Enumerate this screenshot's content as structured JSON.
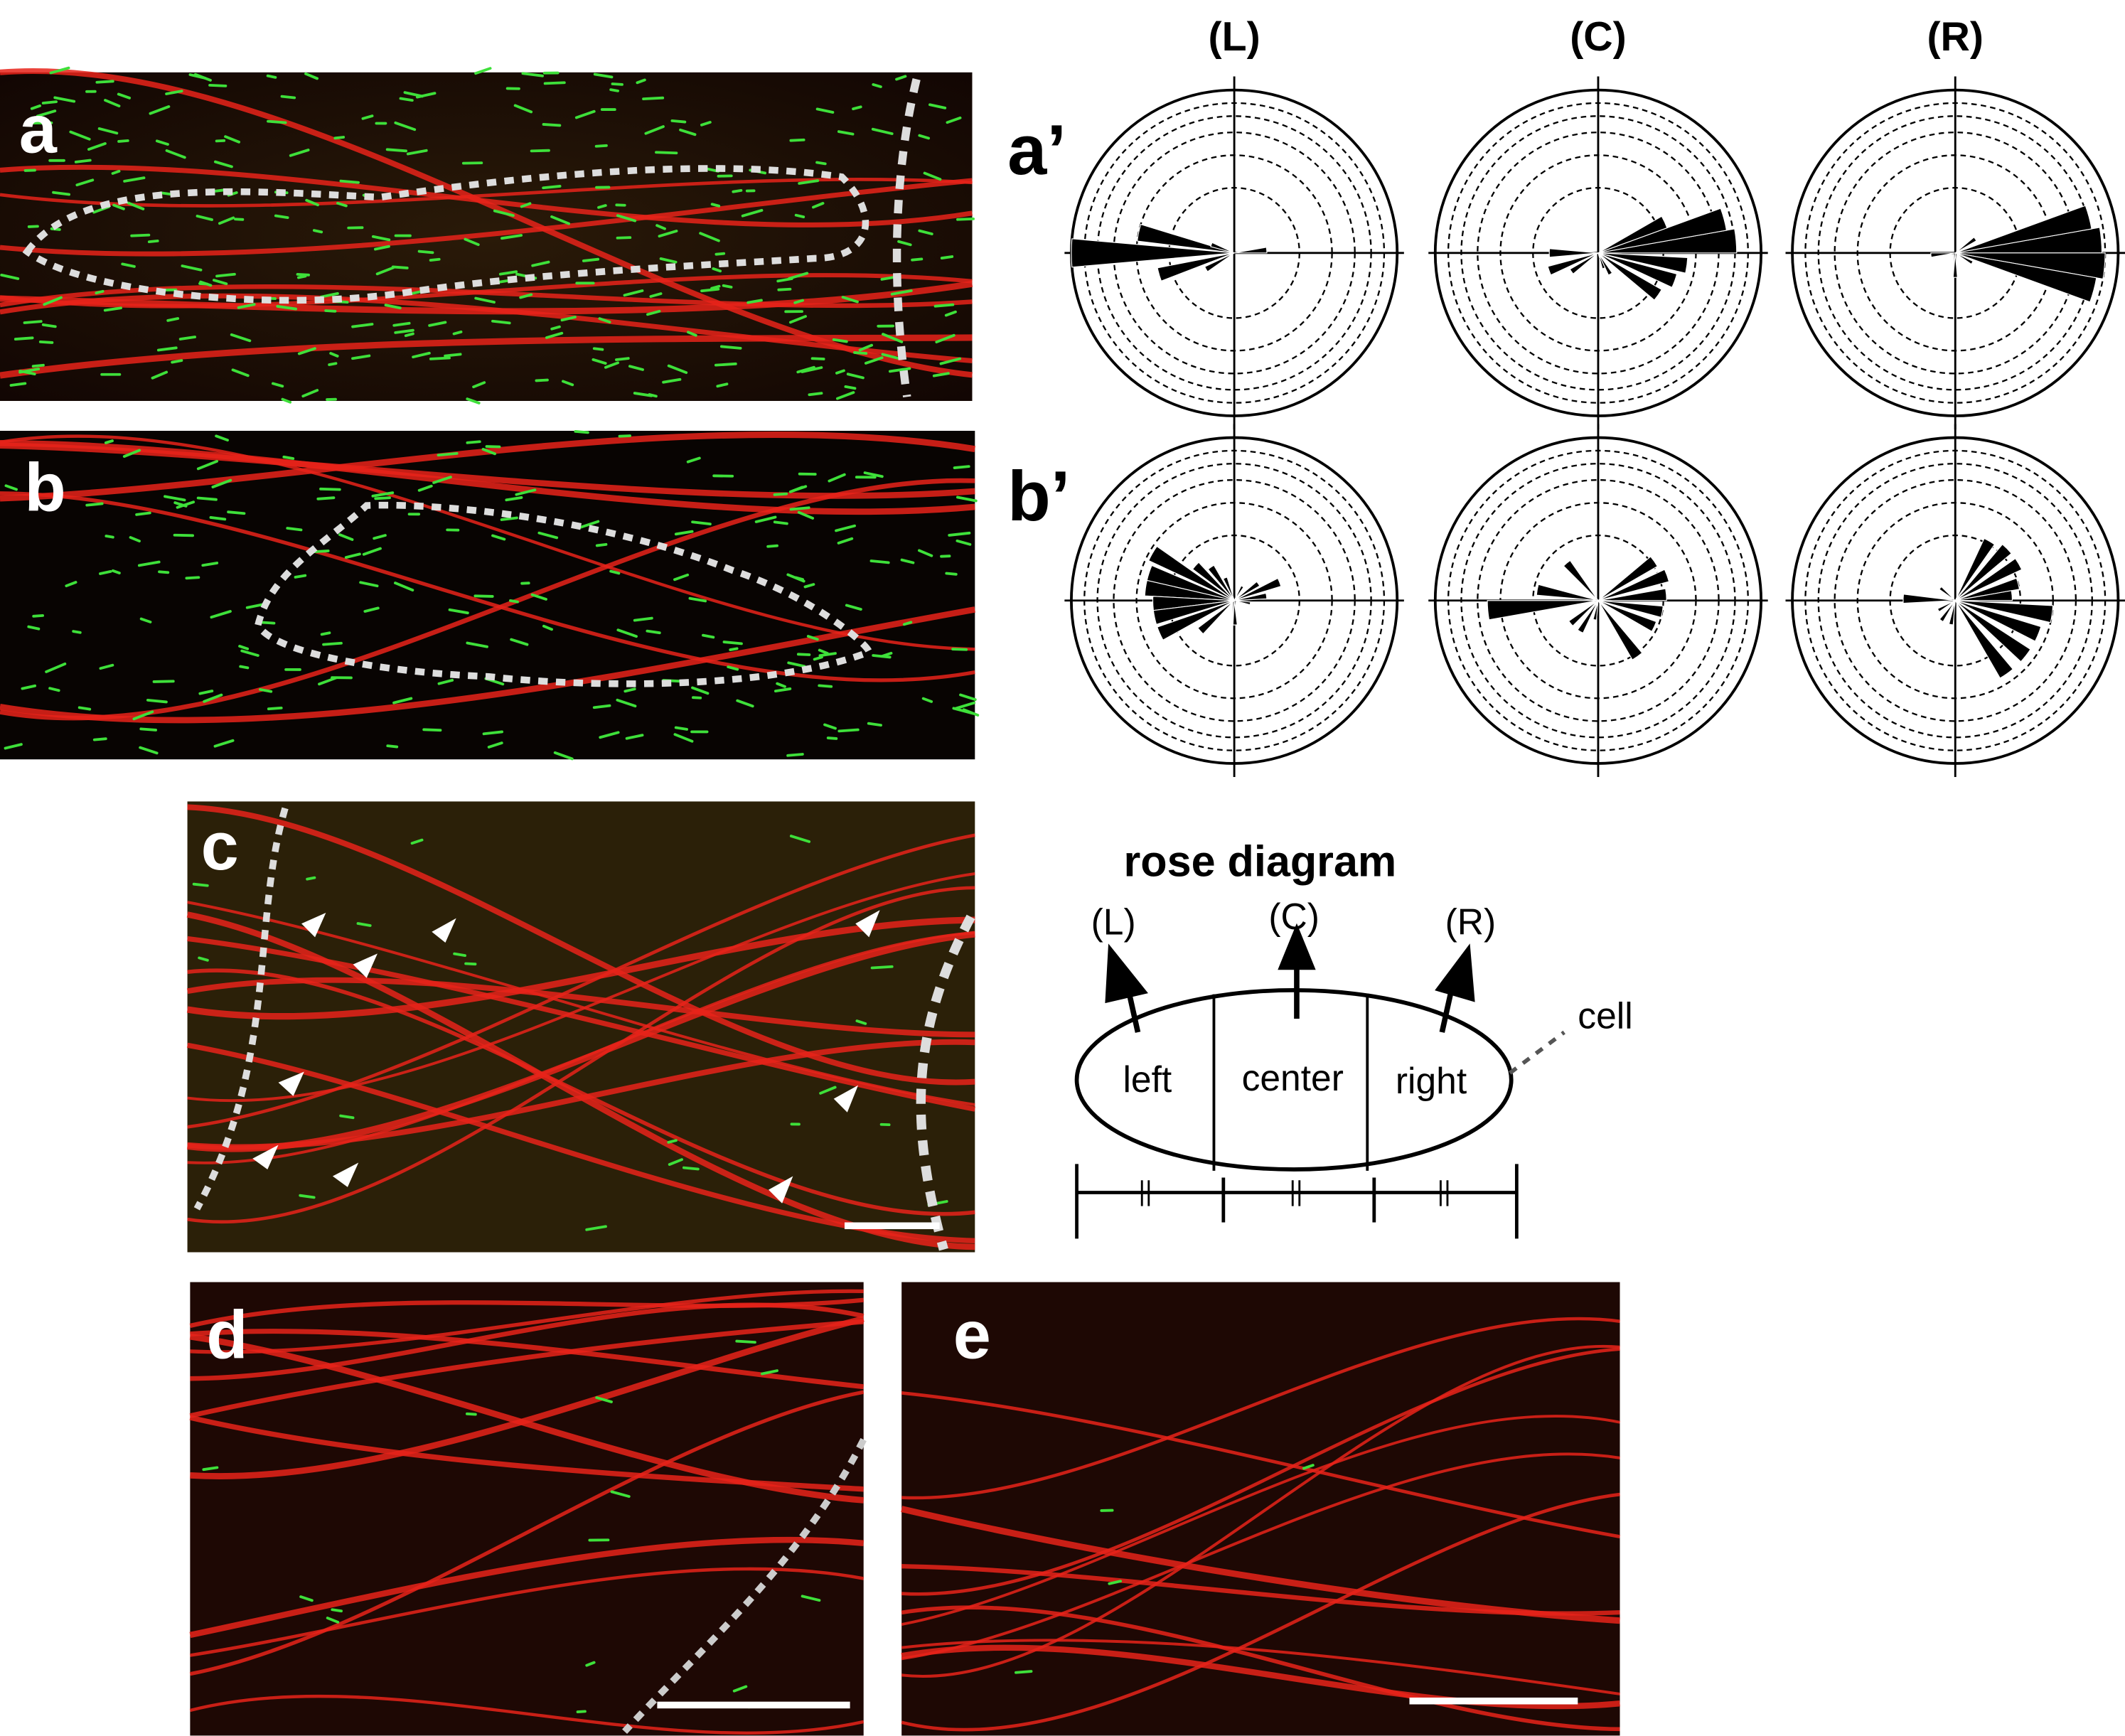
{
  "panels": {
    "a": "a",
    "b": "b",
    "c": "c",
    "d": "d",
    "e": "e",
    "a_prime": "a’",
    "b_prime": "b’"
  },
  "columns": [
    "(L)",
    "(C)",
    "(R)"
  ],
  "schematic": {
    "title": "rose diagram",
    "arrow_labels": [
      "(L)",
      "(C)",
      "(R)"
    ],
    "regions": [
      "left",
      "center",
      "right"
    ],
    "cell_label": "cell"
  },
  "colors": {
    "membrane": "#e8231a",
    "marker": "#3ee03a",
    "outline": "#d8d8d8",
    "background": "#1a0a05"
  },
  "chart_data": {
    "type": "rose",
    "rings": 6,
    "note_units": "bin angle in degrees (0 = right, counter-clockwise); length as fraction of outer circle",
    "rows": [
      {
        "row": "a’",
        "diagrams": [
          {
            "column": "(L)",
            "bins": [
              [
                180,
                1.0
              ],
              [
                168,
                0.6
              ],
              [
                196,
                0.48
              ],
              [
                160,
                0.15
              ],
              [
                5,
                0.2
              ],
              [
                210,
                0.2
              ]
            ]
          },
          {
            "column": "(C)",
            "bins": [
              [
                5,
                0.85
              ],
              [
                15,
                0.8
              ],
              [
                25,
                0.45
              ],
              [
                352,
                0.55
              ],
              [
                340,
                0.5
              ],
              [
                325,
                0.45
              ],
              [
                180,
                0.3
              ],
              [
                200,
                0.32
              ],
              [
                215,
                0.2
              ],
              [
                300,
                0.15
              ],
              [
                290,
                0.1
              ]
            ]
          },
          {
            "column": "(R)",
            "bins": [
              [
                5,
                0.9
              ],
              [
                15,
                0.85
              ],
              [
                355,
                0.92
              ],
              [
                345,
                0.88
              ],
              [
                35,
                0.15
              ],
              [
                185,
                0.15
              ],
              [
                270,
                0.15
              ],
              [
                330,
                0.12
              ]
            ]
          }
        ]
      },
      {
        "row": "b’",
        "diagrams": [
          {
            "column": "(L)",
            "bins": [
              [
                150,
                0.58
              ],
              [
                162,
                0.55
              ],
              [
                172,
                0.55
              ],
              [
                182,
                0.5
              ],
              [
                192,
                0.5
              ],
              [
                204,
                0.5
              ],
              [
                138,
                0.32
              ],
              [
                125,
                0.25
              ],
              [
                112,
                0.15
              ],
              [
                60,
                0.1
              ],
              [
                35,
                0.18
              ],
              [
                22,
                0.3
              ],
              [
                8,
                0.2
              ],
              [
                272,
                0.15
              ],
              [
                222,
                0.28
              ],
              [
                350,
                0.1
              ]
            ]
          },
          {
            "column": "(C)",
            "bins": [
              [
                185,
                0.68
              ],
              [
                170,
                0.38
              ],
              [
                130,
                0.3
              ],
              [
                35,
                0.42
              ],
              [
                20,
                0.45
              ],
              [
                5,
                0.42
              ],
              [
                350,
                0.4
              ],
              [
                335,
                0.38
              ],
              [
                305,
                0.42
              ],
              [
                220,
                0.22
              ],
              [
                240,
                0.22
              ],
              [
                260,
                0.12
              ]
            ]
          },
          {
            "column": "(R)",
            "bins": [
              [
                60,
                0.42
              ],
              [
                45,
                0.45
              ],
              [
                30,
                0.45
              ],
              [
                15,
                0.4
              ],
              [
                5,
                0.35
              ],
              [
                352,
                0.6
              ],
              [
                338,
                0.55
              ],
              [
                322,
                0.55
              ],
              [
                305,
                0.55
              ],
              [
                178,
                0.32
              ],
              [
                140,
                0.12
              ],
              [
                260,
                0.15
              ],
              [
                235,
                0.15
              ],
              [
                210,
                0.12
              ]
            ]
          }
        ]
      }
    ]
  }
}
